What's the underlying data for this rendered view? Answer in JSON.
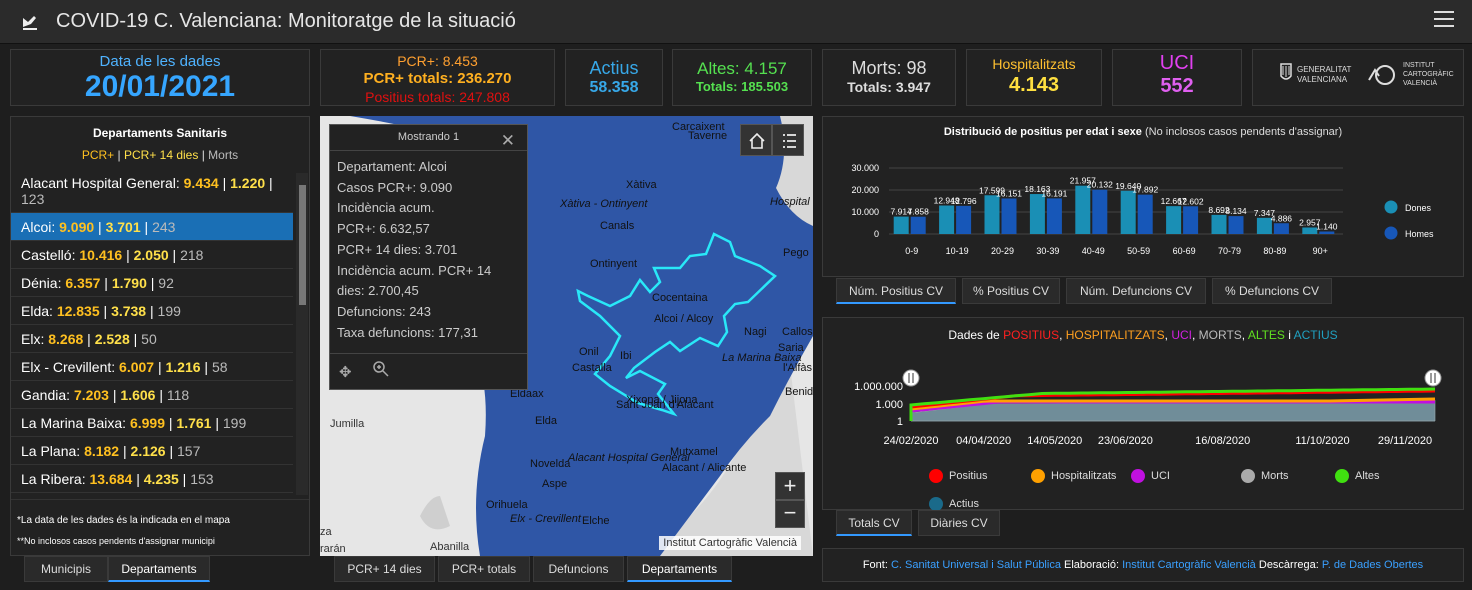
{
  "header": {
    "title": "COVID-19 C. Valenciana: Monitoratge de la situació"
  },
  "date": {
    "label": "Data de les dades",
    "value": "20/01/2021"
  },
  "pcr": {
    "new": "PCR+: 8.453",
    "total": "PCR+ totals: 236.270",
    "positives": "Positius totals: 247.808"
  },
  "actius": {
    "label": "Actius",
    "value": "58.358"
  },
  "altes": {
    "label": "Altes: 4.157",
    "total": "Totals: 185.503"
  },
  "morts": {
    "label": "Morts: 98",
    "total": "Totals: 3.947"
  },
  "hosp": {
    "label": "Hospitalitzats",
    "value": "4.143"
  },
  "uci": {
    "label": "UCI",
    "value": "552"
  },
  "logos": {
    "gva": "GENERALITAT VALENCIANA",
    "icv": "INSTITUT CARTOGRÀFIC VALENCIÀ"
  },
  "departments": {
    "title": "Departaments Sanitaris",
    "legend_a": "PCR+",
    "legend_b": "PCR+ 14 dies",
    "legend_c": "Morts",
    "rows": [
      {
        "name": "Alacant Hospital General:",
        "a": "9.434",
        "b": "1.220",
        "c": "123"
      },
      {
        "name": "Alcoi:",
        "a": "9.090",
        "b": "3.701",
        "c": "243"
      },
      {
        "name": "Castelló:",
        "a": "10.416",
        "b": "2.050",
        "c": "218"
      },
      {
        "name": "Dénia:",
        "a": "6.357",
        "b": "1.790",
        "c": "92"
      },
      {
        "name": "Elda:",
        "a": "12.835",
        "b": "3.738",
        "c": "199"
      },
      {
        "name": "Elx:",
        "a": "8.268",
        "b": "2.528",
        "c": "50"
      },
      {
        "name": "Elx - Crevillent:",
        "a": "6.007",
        "b": "1.216",
        "c": "58"
      },
      {
        "name": "Gandia:",
        "a": "7.203",
        "b": "1.606",
        "c": "118"
      },
      {
        "name": "La Marina Baixa:",
        "a": "6.999",
        "b": "1.761",
        "c": "199"
      },
      {
        "name": "La Plana:",
        "a": "8.182",
        "b": "2.126",
        "c": "157"
      },
      {
        "name": "La Ribera:",
        "a": "13.684",
        "b": "4.235",
        "c": "153"
      }
    ],
    "note1": "*La data de les dades és la indicada en el mapa",
    "note2": "**No inclosos casos pendents d'assignar municipi"
  },
  "left_tabs": [
    "Municipis",
    "Departaments"
  ],
  "map_tabs": [
    "PCR+ 14 dies",
    "PCR+ totals",
    "Defuncions",
    "Departaments"
  ],
  "popup": {
    "title": "Mostrando 1",
    "lines": [
      "Departament: Alcoi",
      "Casos PCR+: 9.090",
      "Incidència acum.",
      "PCR+: 6.632,57",
      "PCR+ 14 dies: 3.701",
      "Incidència acum. PCR+ 14",
      "dies: 2.700,45",
      "Defuncions: 243",
      "Taxa defuncions: 177,31"
    ]
  },
  "map": {
    "attribution": "Institut Cartogràfic Valencià",
    "labels": [
      "Carcaixent",
      "Taverne",
      "Xàtiva",
      "Xàtiva - Ontinyent",
      "Canals",
      "Ontinyent",
      "Cocentaina",
      "Alcoi / Alcoy",
      "Onil",
      "Castalla",
      "Ibi",
      "Xixona / Jijona",
      "Sant Joan d'Alacant",
      "Eldaax",
      "Elda",
      "Mutxamel",
      "Alacant Hospital General",
      "Novelda",
      "Alacant / Alicante",
      "Aspe",
      "Orihuela",
      "Elx - Crevillent",
      "Elche",
      "Jumilla",
      "Abanilla",
      "Hospital",
      "Pego",
      "Callosa d",
      "La Marina Baixa",
      "Saria",
      "l'Alfàs d",
      "Benidorm",
      "Nagi",
      "za",
      "rarán"
    ]
  },
  "age_chart": {
    "title": "Distribució de positius per edat i sexe",
    "subtitle": "(No inclosos casos pendents d'assignar)",
    "chart_data": {
      "type": "bar",
      "categories": [
        "0-9",
        "10-19",
        "20-29",
        "30-39",
        "40-49",
        "50-59",
        "60-69",
        "70-79",
        "80-89",
        "90+"
      ],
      "series": [
        {
          "name": "Dones",
          "values": [
            7914,
            12948,
            17599,
            18163,
            21957,
            19640,
            12667,
            8692,
            7347,
            2957
          ],
          "color": "#1a8fb5"
        },
        {
          "name": "Homes",
          "values": [
            7858,
            12796,
            16151,
            16191,
            20132,
            17892,
            12602,
            8134,
            4886,
            1140
          ],
          "color": "#1757b8"
        }
      ],
      "value_labels": {
        "Dones": [
          "7.914",
          "12.948",
          "17.599",
          "18.163",
          "21.957",
          "19.640",
          "12.667",
          "8.692",
          "7.347",
          "2.957"
        ],
        "Homes": [
          "7.858",
          "12.796",
          "16.151",
          "16.191",
          "20.132",
          "17.892",
          "12.602",
          "8.134",
          "4.886",
          "1.140"
        ]
      },
      "yticks": [
        "30.000",
        "20.000",
        "10.000",
        "0"
      ],
      "ylim": [
        0,
        30000
      ]
    }
  },
  "age_tabs": [
    "Núm. Positius CV",
    "% Positius CV",
    "Núm. Defuncions CV",
    "% Defuncions CV"
  ],
  "time_chart": {
    "title_prefix": "Dades de",
    "title_parts": [
      {
        "t": "POSITIUS",
        "c": "#ff2020"
      },
      {
        "t": "HOSPITALITZATS",
        "c": "#ffa020"
      },
      {
        "t": "UCI",
        "c": "#d020e0"
      },
      {
        "t": "MORTS",
        "c": "#bbbbbb"
      },
      {
        "t": "ALTES",
        "c": "#60e020"
      },
      {
        "t": "i",
        "c": "#ffffff"
      },
      {
        "t": "ACTIUS",
        "c": "#20a0c0"
      }
    ],
    "yticks": [
      "1.000.000",
      "1.000",
      "1"
    ],
    "xticks": [
      "24/02/2020",
      "04/04/2020",
      "14/05/2020",
      "23/06/2020",
      "16/08/2020",
      "11/10/2020",
      "29/11/2020"
    ],
    "legend": [
      {
        "label": "Positius",
        "color": "#ff0000"
      },
      {
        "label": "Hospitalitzats",
        "color": "#ffa000"
      },
      {
        "label": "UCI",
        "color": "#c010e0"
      },
      {
        "label": "Morts",
        "color": "#aaaaaa"
      },
      {
        "label": "Altes",
        "color": "#40e010"
      },
      {
        "label": "Actius",
        "color": "#1a6a8a"
      }
    ]
  },
  "time_tabs": [
    "Totals CV",
    "Diàries CV"
  ],
  "footer": {
    "font_label": "Font:",
    "font_value": "C. Sanitat Universal i Salut Pública",
    "elab_label": "Elaboració:",
    "elab_value": "Institut Cartogràfic Valencià",
    "desc_label": "Descàrrega:",
    "desc_value": "P. de Dades Obertes"
  }
}
